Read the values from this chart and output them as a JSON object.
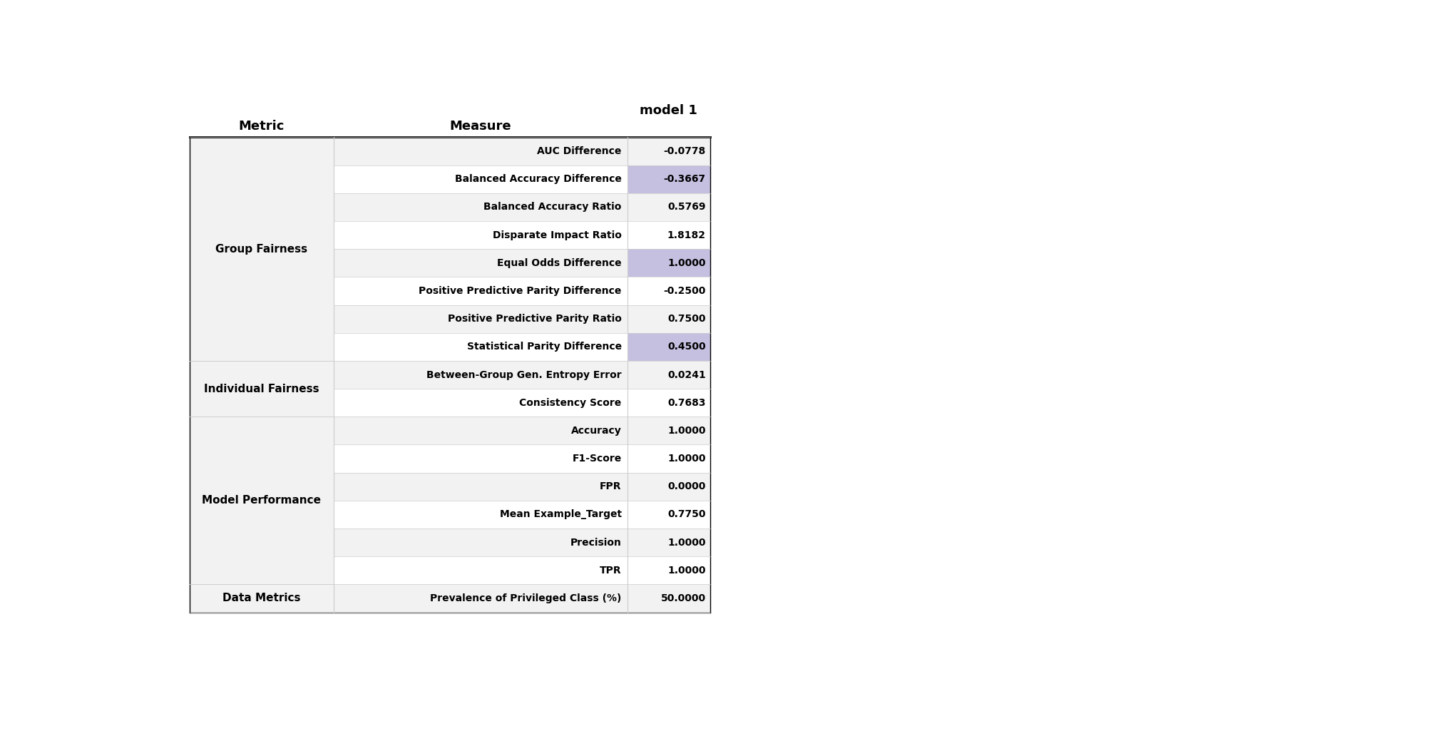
{
  "title": "model 1",
  "col_headers": [
    "Metric",
    "Measure",
    "model 1"
  ],
  "rows": [
    {
      "metric": "Group Fairness",
      "measure": "AUC Difference",
      "value": "-0.0778",
      "highlight": false,
      "metric_group_start": true,
      "white_bg": false
    },
    {
      "metric": "",
      "measure": "Balanced Accuracy Difference",
      "value": "-0.3667",
      "highlight": true,
      "metric_group_start": false,
      "white_bg": true
    },
    {
      "metric": "",
      "measure": "Balanced Accuracy Ratio",
      "value": "0.5769",
      "highlight": false,
      "metric_group_start": false,
      "white_bg": false
    },
    {
      "metric": "",
      "measure": "Disparate Impact Ratio",
      "value": "1.8182",
      "highlight": false,
      "metric_group_start": false,
      "white_bg": true
    },
    {
      "metric": "",
      "measure": "Equal Odds Difference",
      "value": "1.0000",
      "highlight": true,
      "metric_group_start": false,
      "white_bg": false
    },
    {
      "metric": "",
      "measure": "Positive Predictive Parity Difference",
      "value": "-0.2500",
      "highlight": false,
      "metric_group_start": false,
      "white_bg": true
    },
    {
      "metric": "",
      "measure": "Positive Predictive Parity Ratio",
      "value": "0.7500",
      "highlight": false,
      "metric_group_start": false,
      "white_bg": false
    },
    {
      "metric": "",
      "measure": "Statistical Parity Difference",
      "value": "0.4500",
      "highlight": true,
      "metric_group_start": false,
      "white_bg": true
    },
    {
      "metric": "Individual Fairness",
      "measure": "Between-Group Gen. Entropy Error",
      "value": "0.0241",
      "highlight": false,
      "metric_group_start": true,
      "white_bg": false
    },
    {
      "metric": "",
      "measure": "Consistency Score",
      "value": "0.7683",
      "highlight": false,
      "metric_group_start": false,
      "white_bg": true
    },
    {
      "metric": "Model Performance",
      "measure": "Accuracy",
      "value": "1.0000",
      "highlight": false,
      "metric_group_start": true,
      "white_bg": false
    },
    {
      "metric": "",
      "measure": "F1-Score",
      "value": "1.0000",
      "highlight": false,
      "metric_group_start": false,
      "white_bg": true
    },
    {
      "metric": "",
      "measure": "FPR",
      "value": "0.0000",
      "highlight": false,
      "metric_group_start": false,
      "white_bg": false
    },
    {
      "metric": "",
      "measure": "Mean Example_Target",
      "value": "0.7750",
      "highlight": false,
      "metric_group_start": false,
      "white_bg": true
    },
    {
      "metric": "",
      "measure": "Precision",
      "value": "1.0000",
      "highlight": false,
      "metric_group_start": false,
      "white_bg": false
    },
    {
      "metric": "",
      "measure": "TPR",
      "value": "1.0000",
      "highlight": false,
      "metric_group_start": false,
      "white_bg": true
    },
    {
      "metric": "Data Metrics",
      "measure": "Prevalence of Privileged Class (%)",
      "value": "50.0000",
      "highlight": false,
      "metric_group_start": true,
      "white_bg": false
    }
  ],
  "bg_light": "#f2f2f2",
  "bg_white": "#ffffff",
  "highlight_color": "#c5c0e0",
  "border_color": "#cccccc",
  "header_line_color": "#000000"
}
